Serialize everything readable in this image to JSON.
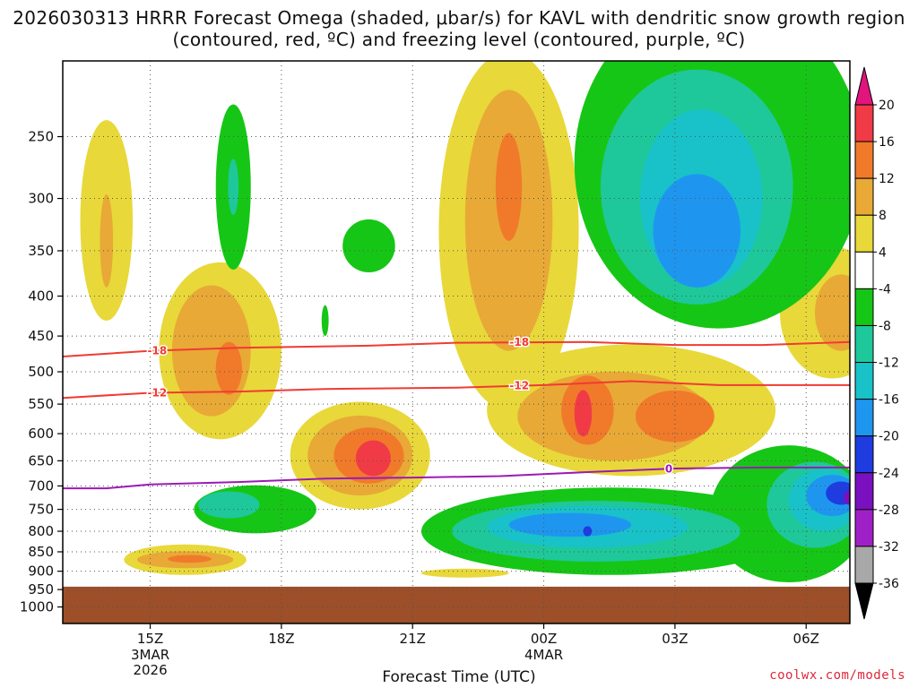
{
  "chart_data": {
    "type": "heatmap",
    "title": "2026030313 HRRR Forecast Omega (shaded, μbar/s) for KAVL with dendritic snow growth region (contoured, red, ºC) and freezing level (contoured, purple, ºC)",
    "xlabel": "Forecast Time (UTC)",
    "ylabel": "",
    "x_ticks": [
      {
        "label": "15Z",
        "hour": 15,
        "sub": [
          "3MAR",
          "2026"
        ]
      },
      {
        "label": "18Z",
        "hour": 18,
        "sub": []
      },
      {
        "label": "21Z",
        "hour": 21,
        "sub": []
      },
      {
        "label": "00Z",
        "hour": 24,
        "sub": [
          "4MAR"
        ]
      },
      {
        "label": "03Z",
        "hour": 27,
        "sub": []
      },
      {
        "label": "06Z",
        "hour": 30,
        "sub": []
      }
    ],
    "xlim_hours": [
      13,
      31
    ],
    "y_ticks": [
      250,
      300,
      350,
      400,
      450,
      500,
      550,
      600,
      650,
      700,
      750,
      800,
      850,
      900,
      950,
      1000
    ],
    "ylim_hpa": [
      200,
      1050
    ],
    "ground_below_hpa": 942,
    "ground_color": "#9c4f28",
    "colorbar": {
      "levels": [
        20,
        16,
        12,
        8,
        4,
        -4,
        -8,
        -12,
        -16,
        -20,
        -24,
        -28,
        -32,
        -36
      ],
      "colors": [
        "#f03b46",
        "#f07a2a",
        "#e8a936",
        "#e8d83a",
        "#ffffff",
        "#16c616",
        "#1ec89a",
        "#18c2c8",
        "#1e96f0",
        "#1e3ce0",
        "#7a10c0",
        "#a020c8",
        "#a8a8a8"
      ],
      "top_arrow_color": "#e2147e",
      "bottom_arrow_color": "#000000"
    },
    "contours": [
      {
        "name": "dgz-minus18",
        "label": "-18",
        "color": "#f03b32",
        "points": [
          [
            13.0,
            478
          ],
          [
            15.0,
            470
          ],
          [
            17.0,
            466
          ],
          [
            20.0,
            463
          ],
          [
            22.0,
            459
          ],
          [
            25.0,
            458
          ],
          [
            27.0,
            462
          ],
          [
            29.0,
            462
          ],
          [
            31.0,
            458
          ]
        ]
      },
      {
        "name": "dgz-minus12",
        "label": "-12",
        "color": "#f03b32",
        "points": [
          [
            13.0,
            540
          ],
          [
            15.0,
            532
          ],
          [
            17.0,
            530
          ],
          [
            19.0,
            526
          ],
          [
            22.0,
            524
          ],
          [
            24.0,
            520
          ],
          [
            26.0,
            514
          ],
          [
            28.0,
            520
          ],
          [
            31.0,
            520
          ]
        ]
      },
      {
        "name": "freezing-level",
        "label": "0",
        "color": "#9b1ab5",
        "points": [
          [
            13.0,
            705
          ],
          [
            14.0,
            705
          ],
          [
            15.0,
            697
          ],
          [
            17.0,
            692
          ],
          [
            19.0,
            685
          ],
          [
            21.0,
            683
          ],
          [
            23.0,
            680
          ],
          [
            25.0,
            672
          ],
          [
            27.0,
            665
          ],
          [
            29.0,
            663
          ],
          [
            31.0,
            663
          ]
        ]
      }
    ],
    "omega_blobs": [
      {
        "name": "yellow-a",
        "level": 4,
        "hour": 14.0,
        "hpa": 320,
        "rh": 0.6,
        "rp": 110
      },
      {
        "name": "orange-a",
        "level": 8,
        "hour": 14.0,
        "hpa": 340,
        "rh": 0.15,
        "rp": 50
      },
      {
        "name": "yellow-b",
        "level": 4,
        "hour": 16.6,
        "hpa": 470,
        "rh": 1.4,
        "rp": 140
      },
      {
        "name": "orange-b",
        "level": 8,
        "hour": 16.4,
        "hpa": 470,
        "rh": 0.9,
        "rp": 100
      },
      {
        "name": "darkorange-b",
        "level": 12,
        "hour": 16.8,
        "hpa": 495,
        "rh": 0.3,
        "rp": 40
      },
      {
        "name": "yellow-c",
        "level": 4,
        "hour": 19.8,
        "hpa": 640,
        "rh": 1.6,
        "rp": 110
      },
      {
        "name": "orange-c",
        "level": 8,
        "hour": 19.8,
        "hpa": 640,
        "rh": 1.2,
        "rp": 80
      },
      {
        "name": "darkorange-c",
        "level": 12,
        "hour": 20.0,
        "hpa": 640,
        "rh": 0.8,
        "rp": 55
      },
      {
        "name": "red-c",
        "level": 16,
        "hour": 20.1,
        "hpa": 645,
        "rh": 0.4,
        "rp": 35
      },
      {
        "name": "yellow-d",
        "level": 4,
        "hour": 23.2,
        "hpa": 330,
        "rh": 1.6,
        "rp": 230
      },
      {
        "name": "orange-d",
        "level": 8,
        "hour": 23.2,
        "hpa": 320,
        "rh": 1.0,
        "rp": 150
      },
      {
        "name": "darkorange-d",
        "level": 12,
        "hour": 23.2,
        "hpa": 290,
        "rh": 0.3,
        "rp": 50
      },
      {
        "name": "yellow-e",
        "level": 4,
        "hour": 26.0,
        "hpa": 560,
        "rh": 3.3,
        "rp": 120
      },
      {
        "name": "orange-e",
        "level": 8,
        "hour": 25.6,
        "hpa": 570,
        "rh": 2.2,
        "rp": 80
      },
      {
        "name": "darkorange-e",
        "level": 12,
        "hour": 25.0,
        "hpa": 560,
        "rh": 0.6,
        "rp": 60
      },
      {
        "name": "darkorange-f",
        "level": 12,
        "hour": 27.0,
        "hpa": 570,
        "rh": 0.9,
        "rp": 45
      },
      {
        "name": "red-e",
        "level": 16,
        "hour": 24.9,
        "hpa": 565,
        "rh": 0.2,
        "rp": 40
      },
      {
        "name": "yellow-g",
        "level": 4,
        "hour": 30.6,
        "hpa": 420,
        "rh": 1.2,
        "rp": 90
      },
      {
        "name": "orange-g",
        "level": 8,
        "hour": 30.8,
        "hpa": 420,
        "rh": 0.6,
        "rp": 50
      },
      {
        "name": "yellow-h",
        "level": 4,
        "hour": 15.8,
        "hpa": 870,
        "rh": 1.4,
        "rp": 40
      },
      {
        "name": "orange-h",
        "level": 8,
        "hour": 15.8,
        "hpa": 870,
        "rh": 1.1,
        "rp": 22
      },
      {
        "name": "darkorange-h",
        "level": 12,
        "hour": 15.9,
        "hpa": 868,
        "rh": 0.5,
        "rp": 10
      },
      {
        "name": "yellow-i",
        "level": 4,
        "hour": 22.2,
        "hpa": 905,
        "rh": 1.0,
        "rp": 12
      },
      {
        "name": "green-a",
        "level": -4,
        "hour": 16.9,
        "hpa": 290,
        "rh": 0.4,
        "rp": 80
      },
      {
        "name": "teal-a",
        "level": -8,
        "hour": 16.9,
        "hpa": 290,
        "rh": 0.12,
        "rp": 25
      },
      {
        "name": "green-b",
        "level": -4,
        "hour": 20.0,
        "hpa": 345,
        "rh": 0.6,
        "rp": 28
      },
      {
        "name": "green-c",
        "level": -4,
        "hour": 19.0,
        "hpa": 430,
        "rh": 0.08,
        "rp": 20
      },
      {
        "name": "green-d",
        "level": -4,
        "hour": 28.0,
        "hpa": 270,
        "rh": 3.3,
        "rp": 170
      },
      {
        "name": "teal-d",
        "level": -8,
        "hour": 27.5,
        "hpa": 290,
        "rh": 2.2,
        "rp": 120
      },
      {
        "name": "cyan-d",
        "level": -12,
        "hour": 27.6,
        "hpa": 300,
        "rh": 1.4,
        "rp": 90
      },
      {
        "name": "blue-d",
        "level": -16,
        "hour": 27.5,
        "hpa": 330,
        "rh": 1.0,
        "rp": 60
      },
      {
        "name": "green-e",
        "level": -4,
        "hour": 17.4,
        "hpa": 750,
        "rh": 1.4,
        "rp": 55
      },
      {
        "name": "teal-e",
        "level": -8,
        "hour": 16.8,
        "hpa": 740,
        "rh": 0.7,
        "rp": 30
      },
      {
        "name": "green-f",
        "level": -4,
        "hour": 25.5,
        "hpa": 800,
        "rh": 4.3,
        "rp": 110
      },
      {
        "name": "teal-f",
        "level": -8,
        "hour": 25.2,
        "hpa": 800,
        "rh": 3.3,
        "rp": 75
      },
      {
        "name": "cyan-f",
        "level": -12,
        "hour": 25.0,
        "hpa": 790,
        "rh": 2.3,
        "rp": 50
      },
      {
        "name": "blue-f",
        "level": -16,
        "hour": 24.6,
        "hpa": 785,
        "rh": 1.4,
        "rp": 28
      },
      {
        "name": "darkblue-f",
        "level": -20,
        "hour": 25.0,
        "hpa": 800,
        "rh": 0.1,
        "rp": 12
      },
      {
        "name": "green-g",
        "level": -4,
        "hour": 29.6,
        "hpa": 760,
        "rh": 1.8,
        "rp": 170
      },
      {
        "name": "teal-g",
        "level": -8,
        "hour": 30.2,
        "hpa": 740,
        "rh": 1.1,
        "rp": 100
      },
      {
        "name": "cyan-g",
        "level": -12,
        "hour": 30.4,
        "hpa": 730,
        "rh": 0.8,
        "rp": 70
      },
      {
        "name": "blue-g",
        "level": -16,
        "hour": 30.6,
        "hpa": 720,
        "rh": 0.6,
        "rp": 45
      },
      {
        "name": "darkblue-g",
        "level": -20,
        "hour": 30.8,
        "hpa": 715,
        "rh": 0.35,
        "rp": 25
      },
      {
        "name": "purple-g",
        "level": -24,
        "hour": 31.0,
        "hpa": 725,
        "rh": 0.15,
        "rp": 15
      }
    ]
  },
  "credit": "coolwx.com/models"
}
